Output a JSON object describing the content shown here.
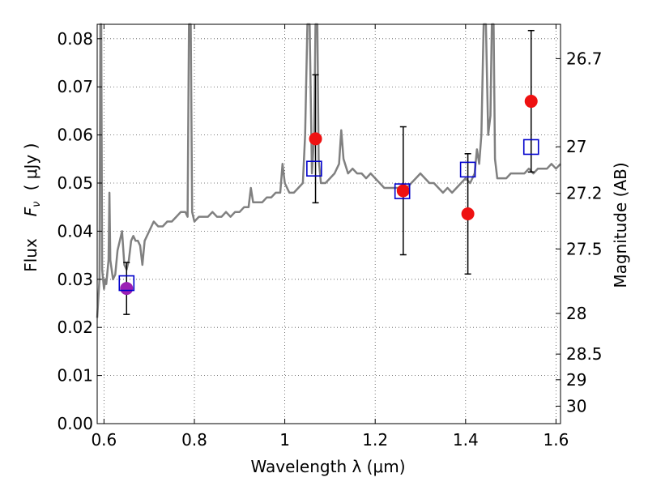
{
  "chart_data": {
    "type": "scatter",
    "xlabel": "Wavelength  λ (μm)",
    "ylabel_prefix": "Flux",
    "ylabel_math": "F",
    "ylabel_sub": "ν",
    "ylabel_unit": "( μJy )",
    "y2label": "Magnitude (AB)",
    "xlim": [
      0.585,
      1.61
    ],
    "ylim": [
      0.0,
      0.083
    ],
    "grid": true,
    "xticks": [
      {
        "value": 0.6,
        "label": "0.6"
      },
      {
        "value": 0.8,
        "label": "0.8"
      },
      {
        "value": 1.0,
        "label": "1"
      },
      {
        "value": 1.2,
        "label": "1.2"
      },
      {
        "value": 1.4,
        "label": "1.4"
      },
      {
        "value": 1.6,
        "label": "1.6"
      }
    ],
    "yticks": [
      {
        "value": 0.0,
        "label": "0.00"
      },
      {
        "value": 0.01,
        "label": "0.01"
      },
      {
        "value": 0.02,
        "label": "0.02"
      },
      {
        "value": 0.03,
        "label": "0.03"
      },
      {
        "value": 0.04,
        "label": "0.04"
      },
      {
        "value": 0.05,
        "label": "0.05"
      },
      {
        "value": 0.06,
        "label": "0.06"
      },
      {
        "value": 0.07,
        "label": "0.07"
      },
      {
        "value": 0.08,
        "label": "0.08"
      }
    ],
    "y2ticks": [
      {
        "mag": 26.7,
        "label": "26.7"
      },
      {
        "mag": 27.0,
        "label": "27"
      },
      {
        "mag": 27.2,
        "label": "27.2"
      },
      {
        "mag": 27.5,
        "label": "27.5"
      },
      {
        "mag": 28.0,
        "label": "28"
      },
      {
        "mag": 28.5,
        "label": "28.5"
      },
      {
        "mag": 29.0,
        "label": "29"
      },
      {
        "mag": 30.0,
        "label": "30"
      }
    ],
    "spectrum": {
      "color": "#808080",
      "points": [
        [
          0.585,
          0.022
        ],
        [
          0.59,
          0.03
        ],
        [
          0.592,
          0.083
        ],
        [
          0.594,
          0.083
        ],
        [
          0.596,
          0.032
        ],
        [
          0.6,
          0.028
        ],
        [
          0.603,
          0.03
        ],
        [
          0.605,
          0.029
        ],
        [
          0.61,
          0.034
        ],
        [
          0.612,
          0.048
        ],
        [
          0.614,
          0.034
        ],
        [
          0.62,
          0.03
        ],
        [
          0.625,
          0.031
        ],
        [
          0.63,
          0.036
        ],
        [
          0.635,
          0.038
        ],
        [
          0.64,
          0.04
        ],
        [
          0.645,
          0.033
        ],
        [
          0.65,
          0.032
        ],
        [
          0.655,
          0.034
        ],
        [
          0.66,
          0.038
        ],
        [
          0.665,
          0.039
        ],
        [
          0.67,
          0.038
        ],
        [
          0.675,
          0.038
        ],
        [
          0.68,
          0.037
        ],
        [
          0.685,
          0.033
        ],
        [
          0.69,
          0.038
        ],
        [
          0.7,
          0.04
        ],
        [
          0.71,
          0.042
        ],
        [
          0.72,
          0.041
        ],
        [
          0.73,
          0.041
        ],
        [
          0.74,
          0.042
        ],
        [
          0.75,
          0.042
        ],
        [
          0.76,
          0.043
        ],
        [
          0.77,
          0.044
        ],
        [
          0.78,
          0.044
        ],
        [
          0.785,
          0.043
        ],
        [
          0.788,
          0.083
        ],
        [
          0.792,
          0.083
        ],
        [
          0.795,
          0.044
        ],
        [
          0.8,
          0.042
        ],
        [
          0.81,
          0.043
        ],
        [
          0.82,
          0.043
        ],
        [
          0.83,
          0.043
        ],
        [
          0.84,
          0.044
        ],
        [
          0.85,
          0.043
        ],
        [
          0.86,
          0.043
        ],
        [
          0.87,
          0.044
        ],
        [
          0.88,
          0.043
        ],
        [
          0.89,
          0.044
        ],
        [
          0.9,
          0.044
        ],
        [
          0.91,
          0.045
        ],
        [
          0.92,
          0.045
        ],
        [
          0.925,
          0.049
        ],
        [
          0.93,
          0.046
        ],
        [
          0.94,
          0.046
        ],
        [
          0.95,
          0.046
        ],
        [
          0.96,
          0.047
        ],
        [
          0.97,
          0.047
        ],
        [
          0.98,
          0.048
        ],
        [
          0.99,
          0.048
        ],
        [
          0.995,
          0.054
        ],
        [
          1.0,
          0.05
        ],
        [
          1.01,
          0.048
        ],
        [
          1.02,
          0.048
        ],
        [
          1.03,
          0.049
        ],
        [
          1.04,
          0.05
        ],
        [
          1.045,
          0.06
        ],
        [
          1.05,
          0.083
        ],
        [
          1.055,
          0.083
        ],
        [
          1.06,
          0.052
        ],
        [
          1.065,
          0.06
        ],
        [
          1.068,
          0.083
        ],
        [
          1.072,
          0.083
        ],
        [
          1.075,
          0.055
        ],
        [
          1.08,
          0.05
        ],
        [
          1.09,
          0.05
        ],
        [
          1.1,
          0.051
        ],
        [
          1.11,
          0.052
        ],
        [
          1.12,
          0.054
        ],
        [
          1.125,
          0.061
        ],
        [
          1.13,
          0.055
        ],
        [
          1.14,
          0.052
        ],
        [
          1.15,
          0.053
        ],
        [
          1.16,
          0.052
        ],
        [
          1.17,
          0.052
        ],
        [
          1.18,
          0.051
        ],
        [
          1.19,
          0.052
        ],
        [
          1.2,
          0.051
        ],
        [
          1.21,
          0.05
        ],
        [
          1.22,
          0.049
        ],
        [
          1.23,
          0.049
        ],
        [
          1.24,
          0.049
        ],
        [
          1.25,
          0.049
        ],
        [
          1.26,
          0.048
        ],
        [
          1.27,
          0.049
        ],
        [
          1.28,
          0.05
        ],
        [
          1.29,
          0.051
        ],
        [
          1.3,
          0.052
        ],
        [
          1.31,
          0.051
        ],
        [
          1.32,
          0.05
        ],
        [
          1.33,
          0.05
        ],
        [
          1.34,
          0.049
        ],
        [
          1.35,
          0.048
        ],
        [
          1.36,
          0.049
        ],
        [
          1.37,
          0.048
        ],
        [
          1.38,
          0.049
        ],
        [
          1.39,
          0.05
        ],
        [
          1.4,
          0.051
        ],
        [
          1.41,
          0.05
        ],
        [
          1.42,
          0.052
        ],
        [
          1.425,
          0.057
        ],
        [
          1.43,
          0.054
        ],
        [
          1.435,
          0.06
        ],
        [
          1.44,
          0.083
        ],
        [
          1.445,
          0.083
        ],
        [
          1.45,
          0.06
        ],
        [
          1.455,
          0.064
        ],
        [
          1.458,
          0.083
        ],
        [
          1.462,
          0.083
        ],
        [
          1.465,
          0.055
        ],
        [
          1.47,
          0.051
        ],
        [
          1.48,
          0.051
        ],
        [
          1.49,
          0.051
        ],
        [
          1.5,
          0.052
        ],
        [
          1.51,
          0.052
        ],
        [
          1.52,
          0.052
        ],
        [
          1.53,
          0.052
        ],
        [
          1.54,
          0.053
        ],
        [
          1.55,
          0.052
        ],
        [
          1.56,
          0.053
        ],
        [
          1.57,
          0.053
        ],
        [
          1.58,
          0.053
        ],
        [
          1.59,
          0.054
        ],
        [
          1.6,
          0.053
        ],
        [
          1.61,
          0.054
        ]
      ]
    },
    "model_points": {
      "marker": "open-square",
      "color": "#0000cc",
      "points": [
        {
          "x": 0.65,
          "y": 0.0292
        },
        {
          "x": 1.065,
          "y": 0.053
        },
        {
          "x": 1.26,
          "y": 0.0483
        },
        {
          "x": 1.405,
          "y": 0.0528
        },
        {
          "x": 1.545,
          "y": 0.0575
        }
      ]
    },
    "observed_points": {
      "marker": "filled-circle",
      "errorbar_color": "#000000",
      "points": [
        {
          "x": 0.65,
          "y": 0.0281,
          "yerr": 0.0054,
          "color": "#9b1fb4"
        },
        {
          "x": 1.068,
          "y": 0.0592,
          "yerr": 0.0133,
          "color": "#ee1111"
        },
        {
          "x": 1.262,
          "y": 0.0484,
          "yerr": 0.0133,
          "color": "#ee1111"
        },
        {
          "x": 1.405,
          "y": 0.0436,
          "yerr": 0.0125,
          "color": "#ee1111"
        },
        {
          "x": 1.545,
          "y": 0.067,
          "yerr": 0.0147,
          "color": "#ee1111"
        }
      ]
    }
  }
}
